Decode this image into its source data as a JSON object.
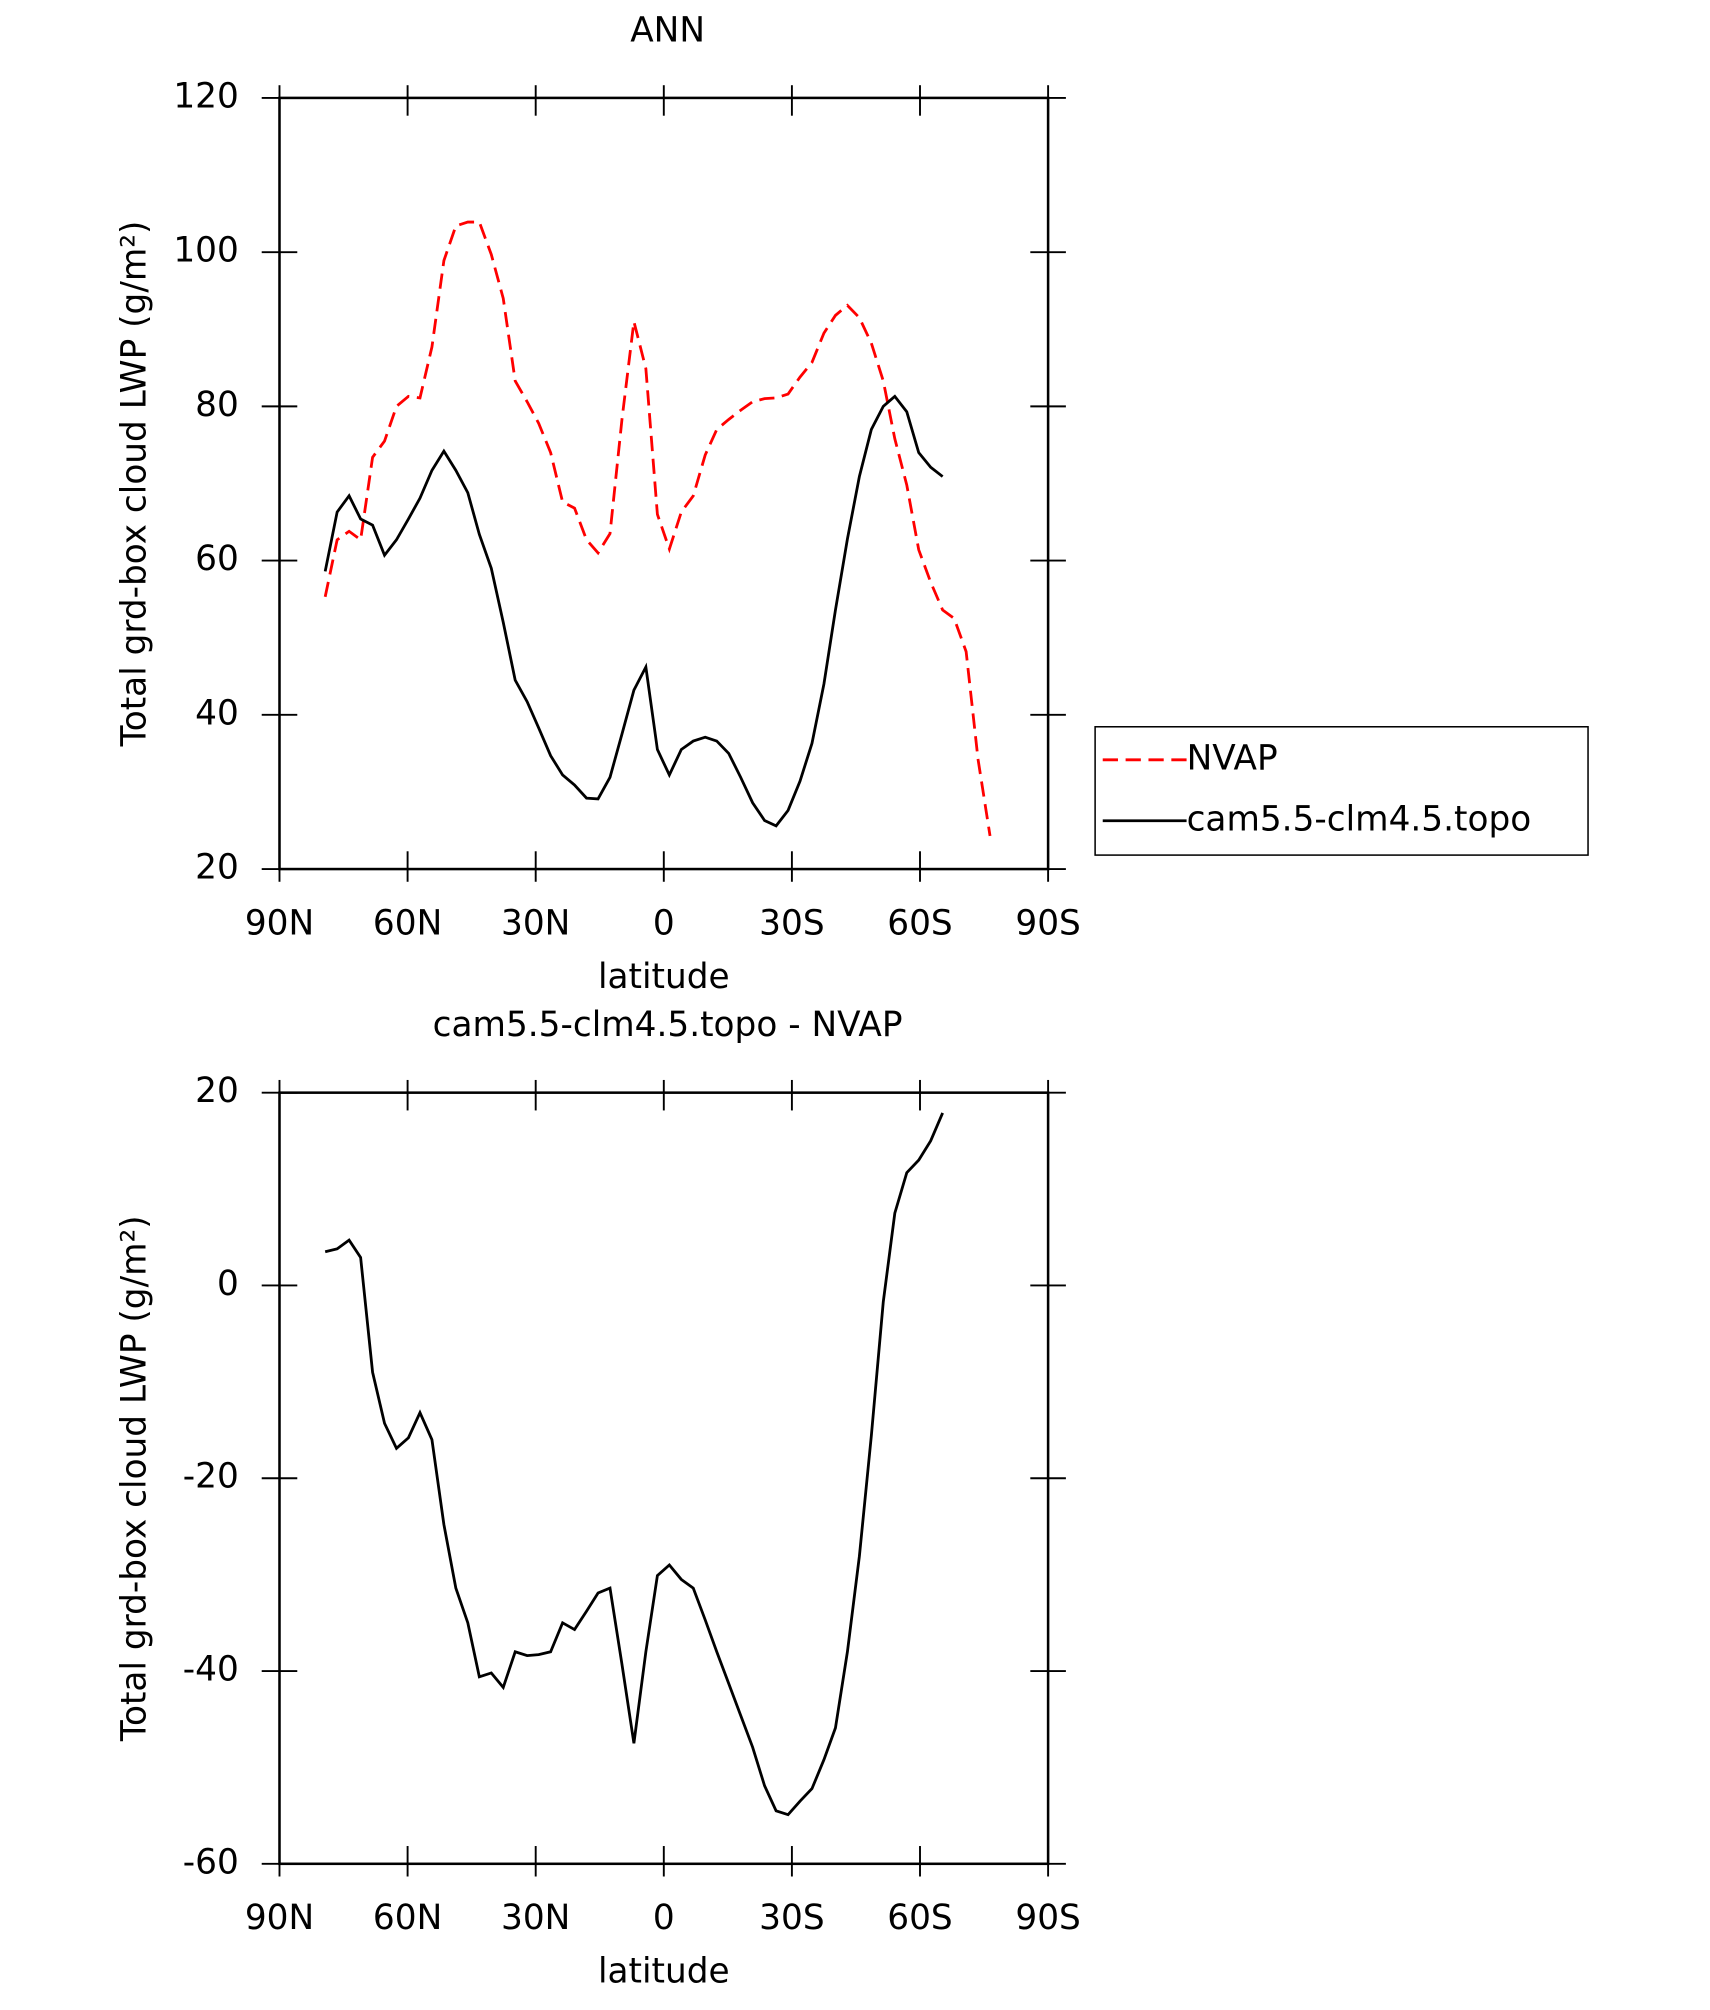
{
  "chart_data": [
    {
      "type": "line",
      "title": "ANN",
      "x_label": "latitude",
      "y_label": "Total grd-box cloud LWP (g/m²)",
      "x": [
        79.3,
        76.5,
        73.7,
        71.0,
        68.2,
        65.4,
        62.6,
        59.8,
        57.1,
        54.3,
        51.5,
        48.7,
        45.9,
        43.2,
        40.4,
        37.6,
        34.8,
        32.0,
        29.3,
        26.5,
        23.7,
        20.9,
        18.1,
        15.4,
        12.6,
        9.8,
        7.0,
        4.2,
        1.5,
        -1.3,
        -4.1,
        -6.9,
        -9.7,
        -12.4,
        -15.2,
        -18.0,
        -20.8,
        -23.6,
        -26.3,
        -29.1,
        -31.9,
        -34.7,
        -37.5,
        -40.2,
        -43.0,
        -45.8,
        -48.6,
        -51.4,
        -54.1,
        -56.9,
        -59.7,
        -62.5,
        -65.3,
        -68.0,
        -70.8,
        -73.6,
        -76.4
      ],
      "series": [
        {
          "name": "NVAP",
          "color": "#ff0000",
          "dashed": true,
          "values": [
            55.3,
            62.7,
            63.8,
            62.7,
            73.4,
            75.5,
            80,
            81.3,
            81.1,
            87.7,
            98.9,
            103.4,
            103.9,
            103.9,
            99.7,
            94,
            83.3,
            80.6,
            77.8,
            74,
            67.6,
            66.8,
            62.7,
            61,
            63.5,
            78.3,
            91,
            84.9,
            66,
            61.5,
            66.3,
            68.4,
            73.7,
            77,
            78.3,
            79.5,
            80.6,
            81,
            81.1,
            81.6,
            83.8,
            85.7,
            89.5,
            91.8,
            93.1,
            91.5,
            88.2,
            83.3,
            75.8,
            69.8,
            61.4,
            57.2,
            53.6,
            52.5,
            48.2,
            34.2,
            24.3
          ]
        },
        {
          "name": "cam5.5-clm4.5.topo",
          "color": "#000000",
          "dashed": false,
          "values": [
            58.6,
            66.3,
            68.4,
            65.4,
            64.6,
            60.7,
            62.7,
            65.4,
            68.1,
            71.7,
            74.2,
            71.7,
            68.8,
            63.4,
            59,
            52,
            44.5,
            41.7,
            38.3,
            34.7,
            32.2,
            30.9,
            29.2,
            29.1,
            31.9,
            37.5,
            43.2,
            46.2,
            35.5,
            32.2,
            35.5,
            36.6,
            37.1,
            36.6,
            35,
            31.9,
            28.6,
            26.3,
            25.6,
            27.6,
            31.4,
            36.3,
            44,
            53.6,
            62.8,
            70.9,
            77,
            80,
            81.3,
            79.3,
            74,
            72.1,
            70.9,
            null,
            null,
            null,
            null
          ]
        }
      ],
      "xlim": [
        90,
        -90
      ],
      "xticks": [
        {
          "value": 90,
          "label": "90N"
        },
        {
          "value": 60,
          "label": "60N"
        },
        {
          "value": 30,
          "label": "30N"
        },
        0,
        {
          "value": -30,
          "label": "30S"
        },
        {
          "value": -60,
          "label": "60S"
        },
        {
          "value": -90,
          "label": "90S"
        }
      ],
      "ylim": [
        20,
        120
      ],
      "yticks": [
        20,
        40,
        60,
        80,
        100,
        120
      ],
      "legend": "right"
    },
    {
      "type": "line",
      "title": "cam5.5-clm4.5.topo - NVAP",
      "x_label": "latitude",
      "y_label": "Total grd-box cloud LWP (g/m²)",
      "x": [
        79.3,
        76.5,
        73.7,
        71.0,
        68.2,
        65.4,
        62.6,
        59.8,
        57.1,
        54.3,
        51.5,
        48.7,
        45.9,
        43.2,
        40.4,
        37.6,
        34.8,
        32.0,
        29.3,
        26.5,
        23.7,
        20.9,
        18.1,
        15.4,
        12.6,
        9.8,
        7.0,
        4.2,
        1.5,
        -1.3,
        -4.1,
        -6.9,
        -9.7,
        -12.4,
        -15.2,
        -18.0,
        -20.8,
        -23.6,
        -26.3,
        -29.1,
        -31.9,
        -34.7,
        -37.5,
        -40.2,
        -43.0,
        -45.8,
        -48.6,
        -51.4,
        -54.1,
        -56.9,
        -59.7,
        -62.5,
        -65.3
      ],
      "series": [
        {
          "color": "#000000",
          "dashed": false,
          "values": [
            3.5,
            3.8,
            4.7,
            2.9,
            -9,
            -14.3,
            -16.9,
            -15.8,
            -13.2,
            -16,
            -24.8,
            -31.4,
            -35,
            -40.6,
            -40.2,
            -41.7,
            -38,
            -38.4,
            -38.3,
            -38,
            -35,
            -35.7,
            -33.8,
            -31.9,
            -31.4,
            -39.3,
            -47.5,
            -38,
            -30.1,
            -29,
            -30.5,
            -31.4,
            -34.7,
            -38,
            -41.3,
            -44.6,
            -47.9,
            -51.9,
            -54.5,
            -54.9,
            -53.5,
            -52.2,
            -49.2,
            -45.9,
            -38,
            -28.1,
            -15.6,
            -1.7,
            7.5,
            11.7,
            13,
            15,
            17.9
          ]
        }
      ],
      "xlim": [
        90,
        -90
      ],
      "xticks": [
        {
          "value": 90,
          "label": "90N"
        },
        {
          "value": 60,
          "label": "60N"
        },
        {
          "value": 30,
          "label": "30N"
        },
        0,
        {
          "value": -30,
          "label": "30S"
        },
        {
          "value": -60,
          "label": "60S"
        },
        {
          "value": -90,
          "label": "90S"
        }
      ],
      "ylim": [
        -60,
        20
      ],
      "yticks": [
        -60,
        -40,
        -20,
        0,
        20
      ]
    }
  ]
}
